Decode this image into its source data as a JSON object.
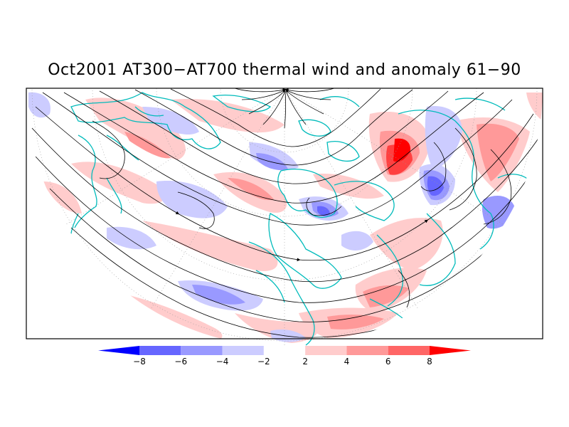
{
  "title": "Oct2001 AT300−AT700 thermal wind and anomaly 61−90",
  "colorbar": {
    "labels": [
      "−8",
      "−6",
      "−4",
      "−2",
      "2",
      "4",
      "6",
      "8"
    ],
    "colors": [
      "#0000ff",
      "#6666ff",
      "#9999ff",
      "#ccccff",
      "#ffffff",
      "#ffcccc",
      "#ff9999",
      "#ff6666",
      "#ff0000"
    ]
  },
  "map": {
    "projection": "north-polar-stereographic-half",
    "coastline_color": "#00bbbb",
    "streamline_color": "#000000"
  }
}
